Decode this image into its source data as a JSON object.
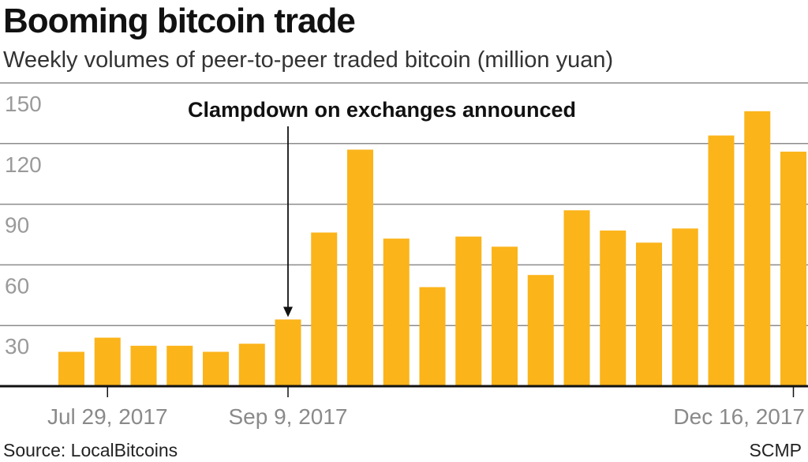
{
  "header": {
    "title": "Booming bitcoin trade",
    "subtitle": "Weekly volumes of peer-to-peer traded bitcoin (million yuan)"
  },
  "footer": {
    "source": "Source: LocalBitcoins",
    "credit": "SCMP"
  },
  "colors": {
    "bar": "#fbb41a",
    "grid": "#8c8c8c",
    "axis": "#111111",
    "tick_label": "#9a9a9a"
  },
  "chart_data": {
    "type": "bar",
    "title": "Booming bitcoin trade",
    "subtitle": "Weekly volumes of peer-to-peer traded bitcoin (million yuan)",
    "ylim": [
      0,
      150
    ],
    "yticks": [
      30,
      60,
      90,
      120,
      150
    ],
    "grid": true,
    "x_labels": [
      {
        "index": 1,
        "label": "Jul 29, 2017"
      },
      {
        "index": 6,
        "label": "Sep 9, 2017"
      },
      {
        "index": 20,
        "label": "Dec 16, 2017"
      }
    ],
    "values": [
      17,
      24,
      20,
      20,
      17,
      21,
      33,
      76,
      117,
      73,
      49,
      74,
      69,
      55,
      87,
      77,
      71,
      78,
      124,
      136,
      116
    ],
    "annotation": {
      "text": "Clampdown on exchanges announced",
      "bar_index": 6
    }
  }
}
